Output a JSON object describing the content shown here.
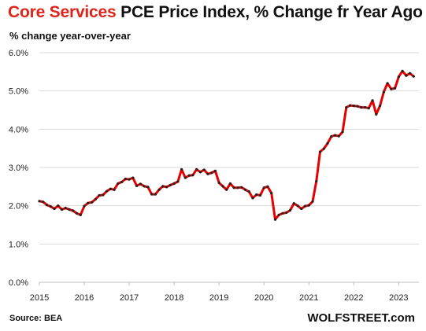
{
  "title_accent": "Core Services",
  "title_rest": "PCE Price Index, % Change fr Year Ago",
  "subtitle": "% change year-over-year",
  "source": "Source: BEA",
  "brand": "WOLFSTREET.com",
  "colors": {
    "line": "#e60000",
    "point": "#222222",
    "grid": "#d9d9d9",
    "accent": "#e0241a"
  },
  "chart_data": {
    "type": "line",
    "xlim": [
      2015.0,
      2023.45
    ],
    "ylim": [
      0,
      6
    ],
    "x_ticks": [
      "2015",
      "2016",
      "2017",
      "2018",
      "2019",
      "2020",
      "2021",
      "2022",
      "2023"
    ],
    "y_ticks": [
      "0.0%",
      "1.0%",
      "2.0%",
      "3.0%",
      "4.0%",
      "5.0%",
      "6.0%"
    ],
    "grid": true,
    "series": [
      {
        "start": "2015-01",
        "frequency": "monthly",
        "values": [
          2.12,
          2.1,
          2.02,
          1.98,
          1.92,
          2.0,
          1.9,
          1.94,
          1.9,
          1.87,
          1.8,
          1.76,
          1.99,
          2.07,
          2.09,
          2.17,
          2.27,
          2.28,
          2.38,
          2.44,
          2.42,
          2.58,
          2.62,
          2.7,
          2.69,
          2.73,
          2.52,
          2.57,
          2.51,
          2.49,
          2.3,
          2.3,
          2.42,
          2.51,
          2.49,
          2.54,
          2.58,
          2.63,
          2.95,
          2.73,
          2.79,
          2.8,
          2.95,
          2.88,
          2.94,
          2.83,
          2.86,
          2.91,
          2.6,
          2.51,
          2.42,
          2.58,
          2.47,
          2.47,
          2.48,
          2.42,
          2.37,
          2.2,
          2.29,
          2.27,
          2.47,
          2.5,
          2.33,
          1.64,
          1.76,
          1.8,
          1.82,
          1.88,
          2.06,
          2.0,
          1.92,
          1.99,
          2.01,
          2.11,
          2.64,
          3.41,
          3.49,
          3.63,
          3.81,
          3.84,
          3.82,
          3.93,
          4.57,
          4.62,
          4.61,
          4.6,
          4.57,
          4.57,
          4.55,
          4.75,
          4.39,
          4.61,
          4.97,
          5.2,
          5.05,
          5.07,
          5.37,
          5.52,
          5.4,
          5.46,
          5.38
        ]
      }
    ]
  }
}
